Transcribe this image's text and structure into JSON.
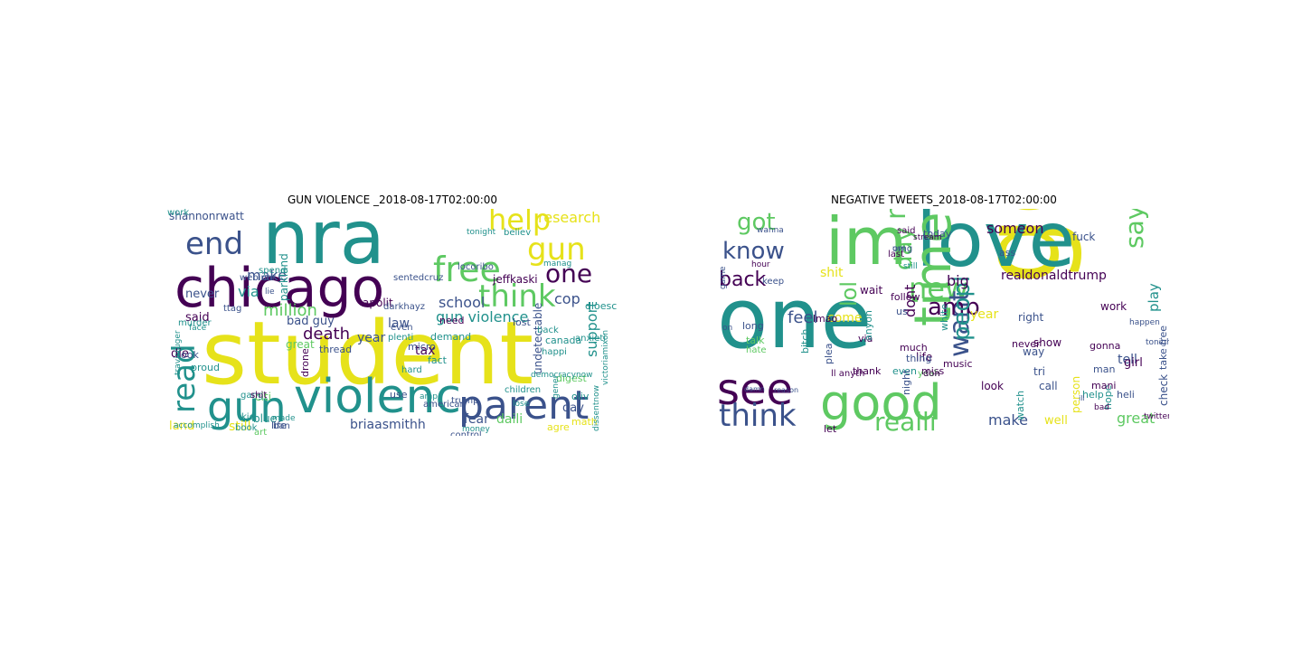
{
  "figure": {
    "left_title": "GUN VIOLENCE _2018-08-17T02:00:00",
    "right_title": "NEGATIVE TWEETS_2018-08-17T02:00:00"
  },
  "colors": {
    "yellow": "#e6e21a",
    "green": "#5ec962",
    "teal": "#21918c",
    "blue": "#3b528b",
    "purple": "#440154",
    "lightgreen": "#9bd93c",
    "cyan": "#2db27d"
  },
  "left_cloud": [
    {
      "text": "nra",
      "color": "teal"
    },
    {
      "text": "student",
      "color": "yellow"
    },
    {
      "text": "chicago",
      "color": "purple"
    },
    {
      "text": "violenc",
      "color": "teal"
    },
    {
      "text": "gun",
      "color": "teal"
    },
    {
      "text": "parent",
      "color": "blue"
    },
    {
      "text": "end",
      "color": "blue"
    },
    {
      "text": "free",
      "color": "green"
    },
    {
      "text": "think",
      "color": "green"
    },
    {
      "text": "gun",
      "color": "yellow"
    },
    {
      "text": "help",
      "color": "yellow"
    },
    {
      "text": "one",
      "color": "purple"
    },
    {
      "text": "read",
      "color": "teal"
    },
    {
      "text": "gun violence",
      "color": "teal"
    },
    {
      "text": "shannonrwatt",
      "color": "blue"
    },
    {
      "text": "research",
      "color": "yellow"
    },
    {
      "text": "jeffkaski",
      "color": "purple"
    },
    {
      "text": "school",
      "color": "blue"
    },
    {
      "text": "make",
      "color": "blue"
    },
    {
      "text": "via",
      "color": "teal"
    },
    {
      "text": "never",
      "color": "blue"
    },
    {
      "text": "million",
      "color": "green"
    },
    {
      "text": "death",
      "color": "purple"
    },
    {
      "text": "tax",
      "color": "purple"
    },
    {
      "text": "law",
      "color": "blue"
    },
    {
      "text": "year",
      "color": "blue"
    },
    {
      "text": "said",
      "color": "purple"
    },
    {
      "text": "support",
      "color": "teal"
    },
    {
      "text": "cop",
      "color": "blue"
    },
    {
      "text": "fear",
      "color": "blue"
    },
    {
      "text": "daili",
      "color": "green"
    },
    {
      "text": "briaasmithh",
      "color": "blue"
    },
    {
      "text": "still",
      "color": "yellow"
    },
    {
      "text": "land",
      "color": "yellow"
    },
    {
      "text": "die",
      "color": "purple"
    },
    {
      "text": "bad guy",
      "color": "blue"
    },
    {
      "text": "parkland",
      "color": "teal"
    },
    {
      "text": "apolit",
      "color": "purple"
    },
    {
      "text": "thread",
      "color": "blue"
    },
    {
      "text": "drone",
      "color": "purple"
    },
    {
      "text": "canada",
      "color": "teal"
    },
    {
      "text": "digest",
      "color": "green"
    },
    {
      "text": "day",
      "color": "blue"
    },
    {
      "text": "dloesch",
      "color": "teal"
    },
    {
      "text": "undetectable",
      "color": "blue"
    },
    {
      "text": "citi",
      "color": "green"
    },
    {
      "text": "great",
      "color": "green"
    },
    {
      "text": "look",
      "color": "blue"
    },
    {
      "text": "blue",
      "color": "teal"
    },
    {
      "text": "agre",
      "color": "yellow"
    },
    {
      "text": "use",
      "color": "blue"
    },
    {
      "text": "micro",
      "color": "blue"
    },
    {
      "text": "need",
      "color": "purple"
    },
    {
      "text": "fact",
      "color": "teal"
    },
    {
      "text": "ttag",
      "color": "blue"
    },
    {
      "text": "lost",
      "color": "blue"
    },
    {
      "text": "demand",
      "color": "teal"
    },
    {
      "text": "believ",
      "color": "teal"
    },
    {
      "text": "ban",
      "color": "blue"
    },
    {
      "text": "art",
      "color": "green"
    },
    {
      "text": "proud",
      "color": "teal"
    },
    {
      "text": "life",
      "color": "blue"
    },
    {
      "text": "gang",
      "color": "teal"
    },
    {
      "text": "math",
      "color": "yellow"
    },
    {
      "text": "oliv",
      "color": "teal"
    },
    {
      "text": "trump",
      "color": "blue"
    },
    {
      "text": "murder",
      "color": "teal"
    },
    {
      "text": "shit",
      "color": "purple"
    },
    {
      "text": "even",
      "color": "blue"
    },
    {
      "text": "plenti",
      "color": "teal"
    },
    {
      "text": "book",
      "color": "teal"
    },
    {
      "text": "american",
      "color": "blue"
    },
    {
      "text": "control",
      "color": "blue"
    },
    {
      "text": "hard",
      "color": "teal"
    },
    {
      "text": "anxieti",
      "color": "teal"
    },
    {
      "text": "back",
      "color": "teal"
    },
    {
      "text": "happi",
      "color": "teal"
    },
    {
      "text": "children",
      "color": "teal"
    },
    {
      "text": "travisruger",
      "color": "teal"
    },
    {
      "text": "kid",
      "color": "teal"
    },
    {
      "text": "webinar",
      "color": "blue"
    },
    {
      "text": "spend",
      "color": "teal"
    },
    {
      "text": "made",
      "color": "teal"
    },
    {
      "text": "democracynow",
      "color": "teal"
    },
    {
      "text": "dissentnow",
      "color": "teal"
    },
    {
      "text": "victoriamixon",
      "color": "teal"
    },
    {
      "text": "accomplish",
      "color": "teal"
    },
    {
      "text": "sentedcruz",
      "color": "blue"
    },
    {
      "text": "darkhayz",
      "color": "blue"
    },
    {
      "text": "locoribo",
      "color": "blue"
    },
    {
      "text": "tonight",
      "color": "teal"
    },
    {
      "text": "manag",
      "color": "teal"
    },
    {
      "text": "money",
      "color": "teal"
    },
    {
      "text": "lose",
      "color": "teal"
    },
    {
      "text": "gener",
      "color": "teal"
    },
    {
      "text": "amp",
      "color": "teal"
    },
    {
      "text": "face",
      "color": "teal"
    },
    {
      "text": "lie",
      "color": "blue"
    },
    {
      "text": "work",
      "color": "teal"
    }
  ],
  "right_cloud": [
    {
      "text": "one",
      "color": "teal"
    },
    {
      "text": "go",
      "color": "yellow"
    },
    {
      "text": "love",
      "color": "teal"
    },
    {
      "text": "im",
      "color": "green"
    },
    {
      "text": "time",
      "color": "green"
    },
    {
      "text": "good",
      "color": "green"
    },
    {
      "text": "see",
      "color": "purple"
    },
    {
      "text": "think",
      "color": "blue"
    },
    {
      "text": "know",
      "color": "blue"
    },
    {
      "text": "new",
      "color": "green"
    },
    {
      "text": "got",
      "color": "green"
    },
    {
      "text": "back",
      "color": "purple"
    },
    {
      "text": "want",
      "color": "blue"
    },
    {
      "text": "say",
      "color": "green"
    },
    {
      "text": "need",
      "color": "green"
    },
    {
      "text": "day",
      "color": "green"
    },
    {
      "text": "amp",
      "color": "purple"
    },
    {
      "text": "peopl",
      "color": "teal"
    },
    {
      "text": "realli",
      "color": "green"
    },
    {
      "text": "lol",
      "color": "green"
    },
    {
      "text": "feel",
      "color": "blue"
    },
    {
      "text": "come",
      "color": "yellow"
    },
    {
      "text": "shit",
      "color": "yellow"
    },
    {
      "text": "someon",
      "color": "purple"
    },
    {
      "text": "dont",
      "color": "purple"
    },
    {
      "text": "make",
      "color": "blue"
    },
    {
      "text": "great",
      "color": "green"
    },
    {
      "text": "play",
      "color": "teal"
    },
    {
      "text": "realdonaldtrump",
      "color": "purple"
    },
    {
      "text": "big",
      "color": "purple"
    },
    {
      "text": "right",
      "color": "blue"
    },
    {
      "text": "look",
      "color": "purple"
    },
    {
      "text": "show",
      "color": "purple"
    },
    {
      "text": "life",
      "color": "purple"
    },
    {
      "text": "year",
      "color": "yellow"
    },
    {
      "text": "way",
      "color": "blue"
    },
    {
      "text": "tell",
      "color": "blue"
    },
    {
      "text": "work",
      "color": "purple"
    },
    {
      "text": "take free",
      "color": "blue"
    },
    {
      "text": "check",
      "color": "blue"
    },
    {
      "text": "fuck",
      "color": "blue"
    },
    {
      "text": "today",
      "color": "blue"
    },
    {
      "text": "said",
      "color": "purple"
    },
    {
      "text": "gonna",
      "color": "purple"
    },
    {
      "text": "person",
      "color": "yellow"
    },
    {
      "text": "girl",
      "color": "purple"
    },
    {
      "text": "man",
      "color": "blue"
    },
    {
      "text": "call",
      "color": "blue"
    },
    {
      "text": "well",
      "color": "yellow"
    },
    {
      "text": "thank",
      "color": "purple"
    },
    {
      "text": "even",
      "color": "teal"
    },
    {
      "text": "miss",
      "color": "purple"
    },
    {
      "text": "much",
      "color": "purple"
    },
    {
      "text": "via",
      "color": "purple"
    },
    {
      "text": "us",
      "color": "blue"
    },
    {
      "text": "follow",
      "color": "purple"
    },
    {
      "text": "wait",
      "color": "purple"
    },
    {
      "text": "never",
      "color": "purple"
    },
    {
      "text": "music",
      "color": "purple"
    },
    {
      "text": "thing",
      "color": "blue"
    },
    {
      "text": "lmao",
      "color": "purple"
    },
    {
      "text": "long",
      "color": "blue"
    },
    {
      "text": "talk",
      "color": "green"
    },
    {
      "text": "hate",
      "color": "green"
    },
    {
      "text": "bitch",
      "color": "teal"
    },
    {
      "text": "anyon",
      "color": "teal"
    },
    {
      "text": "let",
      "color": "purple"
    },
    {
      "text": "night",
      "color": "blue"
    },
    {
      "text": "watch",
      "color": "teal"
    },
    {
      "text": "yeah",
      "color": "green"
    },
    {
      "text": "keep",
      "color": "blue"
    },
    {
      "text": "omg",
      "color": "blue"
    },
    {
      "text": "last",
      "color": "purple"
    },
    {
      "text": "white",
      "color": "teal"
    },
    {
      "text": "plea",
      "color": "blue"
    },
    {
      "text": "hope",
      "color": "teal"
    },
    {
      "text": "help",
      "color": "teal"
    },
    {
      "text": "mani",
      "color": "purple"
    },
    {
      "text": "heli",
      "color": "blue"
    },
    {
      "text": "ass",
      "color": "blue"
    },
    {
      "text": "twitter",
      "color": "purple"
    },
    {
      "text": "bad",
      "color": "purple"
    },
    {
      "text": "game",
      "color": "blue"
    },
    {
      "text": "hour",
      "color": "purple"
    },
    {
      "text": "still",
      "color": "teal"
    },
    {
      "text": "stream",
      "color": "purple"
    },
    {
      "text": "happen",
      "color": "blue"
    },
    {
      "text": "tonight",
      "color": "blue"
    },
    {
      "text": "reason",
      "color": "blue"
    },
    {
      "text": "damn",
      "color": "blue"
    },
    {
      "text": "ill",
      "color": "blue"
    },
    {
      "text": "wanna",
      "color": "blue"
    },
    {
      "text": "use",
      "color": "blue"
    },
    {
      "text": "don",
      "color": "purple"
    },
    {
      "text": "ll anyth",
      "color": "purple"
    },
    {
      "text": "on",
      "color": "blue"
    },
    {
      "text": "tri",
      "color": "blue"
    }
  ]
}
